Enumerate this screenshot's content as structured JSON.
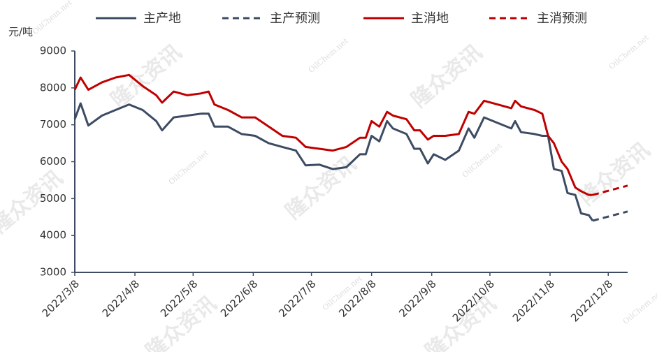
{
  "chart_data": {
    "type": "line",
    "y_label": "元/吨",
    "watermark": "隆众资讯",
    "watermark_site": "OilChem.net",
    "x": [
      "2022/3/8",
      "2022/3/11",
      "2022/3/15",
      "2022/3/22",
      "2022/3/29",
      "2022/4/5",
      "2022/4/12",
      "2022/4/19",
      "2022/4/22",
      "2022/4/28",
      "2022/5/5",
      "2022/5/12",
      "2022/5/16",
      "2022/5/19",
      "2022/5/26",
      "2022/6/2",
      "2022/6/9",
      "2022/6/16",
      "2022/6/23",
      "2022/6/30",
      "2022/7/5",
      "2022/7/12",
      "2022/7/19",
      "2022/7/26",
      "2022/8/2",
      "2022/8/5",
      "2022/8/8",
      "2022/8/12",
      "2022/8/16",
      "2022/8/19",
      "2022/8/26",
      "2022/8/30",
      "2022/9/2",
      "2022/9/6",
      "2022/9/9",
      "2022/9/15",
      "2022/9/22",
      "2022/9/27",
      "2022/9/30",
      "2022/10/5",
      "2022/10/12",
      "2022/10/19",
      "2022/10/21",
      "2022/10/24",
      "2022/10/31",
      "2022/11/4",
      "2022/11/7",
      "2022/11/10",
      "2022/11/14",
      "2022/11/17",
      "2022/11/21",
      "2022/11/24",
      "2022/11/28",
      "2022/11/30",
      "2022/12/18"
    ],
    "series": [
      {
        "name": "主产地",
        "color": "#3d4b63",
        "dash": false,
        "values": [
          7150,
          7580,
          6980,
          7250,
          7400,
          7550,
          7400,
          7100,
          6850,
          7200,
          7250,
          7300,
          7300,
          6950,
          6950,
          6750,
          6700,
          6500,
          6400,
          6300,
          5900,
          5920,
          5800,
          5850,
          6200,
          6200,
          6700,
          6550,
          7100,
          6900,
          6750,
          6350,
          6350,
          5950,
          6200,
          6050,
          6300,
          6900,
          6650,
          7200,
          7050,
          6900,
          7100,
          6800,
          6750,
          6700,
          6700,
          5800,
          5750,
          5150,
          5100,
          4600,
          4550,
          4400,
          null
        ]
      },
      {
        "name": "主产预测",
        "color": "#3d4b63",
        "dash": true,
        "values": [
          null,
          null,
          null,
          null,
          null,
          null,
          null,
          null,
          null,
          null,
          null,
          null,
          null,
          null,
          null,
          null,
          null,
          null,
          null,
          null,
          null,
          null,
          null,
          null,
          null,
          null,
          null,
          null,
          null,
          null,
          null,
          null,
          null,
          null,
          null,
          null,
          null,
          null,
          null,
          null,
          null,
          null,
          null,
          null,
          null,
          null,
          null,
          null,
          null,
          null,
          null,
          null,
          null,
          4400,
          4650
        ]
      },
      {
        "name": "主消地",
        "color": "#c00000",
        "dash": false,
        "values": [
          7950,
          8280,
          7950,
          8150,
          8280,
          8350,
          8050,
          7800,
          7600,
          7900,
          7800,
          7850,
          7900,
          7550,
          7400,
          7200,
          7200,
          6950,
          6700,
          6650,
          6400,
          6350,
          6300,
          6400,
          6650,
          6650,
          7100,
          6950,
          7350,
          7250,
          7150,
          6850,
          6850,
          6600,
          6700,
          6700,
          6750,
          7350,
          7300,
          7650,
          7550,
          7450,
          7650,
          7500,
          7400,
          7300,
          6700,
          6500,
          6000,
          5800,
          5300,
          5200,
          5100,
          5100,
          null
        ]
      },
      {
        "name": "主消预测",
        "color": "#c00000",
        "dash": true,
        "values": [
          null,
          null,
          null,
          null,
          null,
          null,
          null,
          null,
          null,
          null,
          null,
          null,
          null,
          null,
          null,
          null,
          null,
          null,
          null,
          null,
          null,
          null,
          null,
          null,
          null,
          null,
          null,
          null,
          null,
          null,
          null,
          null,
          null,
          null,
          null,
          null,
          null,
          null,
          null,
          null,
          null,
          null,
          null,
          null,
          null,
          null,
          null,
          null,
          null,
          null,
          null,
          null,
          null,
          5100,
          5350
        ]
      }
    ],
    "xlim": [
      "2022/3/8",
      "2022/12/18"
    ],
    "xticks": [
      "2022/3/8",
      "2022/4/8",
      "2022/5/8",
      "2022/6/8",
      "2022/7/8",
      "2022/8/8",
      "2022/9/8",
      "2022/10/8",
      "2022/11/8",
      "2022/12/8"
    ],
    "ylim": [
      3000,
      9000
    ],
    "yticks": [
      3000,
      4000,
      5000,
      6000,
      7000,
      8000,
      9000
    ],
    "axis_color": "#3d4b63"
  }
}
